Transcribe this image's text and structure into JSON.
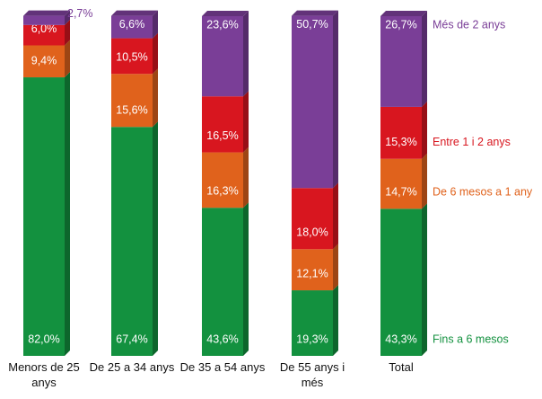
{
  "chart_data": {
    "type": "stacked_bar",
    "categories": [
      "Menors de 25 anys",
      "De 25 a 34 anys",
      "De 35 a 54 anys",
      "De 55 anys i més",
      "Total"
    ],
    "ylim": [
      0,
      100
    ],
    "series": [
      {
        "name": "Fins a 6 mesos",
        "color": "#13913f",
        "values": [
          82.0,
          67.4,
          43.6,
          19.3,
          43.3
        ],
        "value_labels": [
          "82,0%",
          "67,4%",
          "43,6%",
          "19,3%",
          "43,3%"
        ]
      },
      {
        "name": "De 6 mesos a 1 any",
        "color": "#e0621c",
        "values": [
          9.4,
          15.6,
          16.3,
          12.1,
          14.7
        ],
        "value_labels": [
          "9,4%",
          "15,6%",
          "16,3%",
          "12,1%",
          "14,7%"
        ]
      },
      {
        "name": "Entre 1 i 2 anys",
        "color": "#d8161f",
        "values": [
          6.0,
          10.5,
          16.5,
          18.0,
          15.3
        ],
        "value_labels": [
          "6,0%",
          "10,5%",
          "16,5%",
          "18,0%",
          "15,3%"
        ]
      },
      {
        "name": "Més de 2 anys",
        "color": "#7a3e97",
        "values": [
          2.7,
          6.6,
          23.6,
          50.7,
          26.7
        ],
        "value_labels": [
          "2,7%",
          "6,6%",
          "23,6%",
          "50,7%",
          "26,7%"
        ]
      }
    ]
  }
}
